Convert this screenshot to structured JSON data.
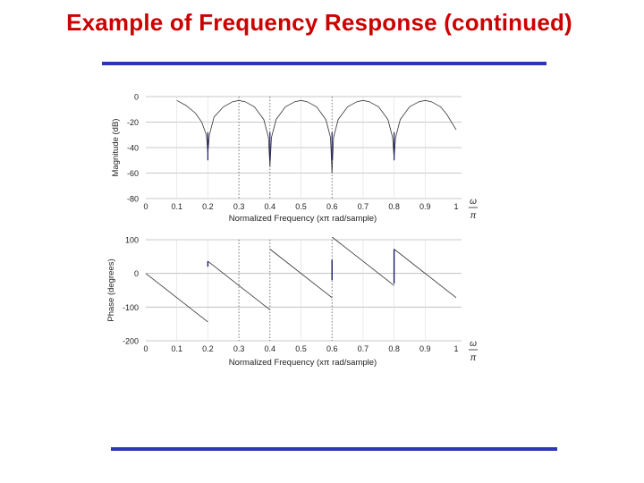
{
  "slide": {
    "title": "Example of Frequency Response (continued)",
    "title_color": "#cc0000",
    "rule_color": "#2b36b8"
  },
  "chart_data": [
    {
      "type": "line",
      "title": "",
      "xlabel": "Normalized Frequency  (xπ rad/sample)",
      "ylabel": "Magnitude (dB)",
      "xlim": [
        0,
        1
      ],
      "ylim": [
        -80,
        0
      ],
      "xticks": [
        "0",
        "0.1",
        "0.2",
        "0.3",
        "0.4",
        "0.5",
        "0.6",
        "0.7",
        "0.8",
        "0.9",
        "1"
      ],
      "yticks": [
        "0",
        "-20",
        "-40",
        "-60",
        "-80"
      ],
      "omega_label": "ω",
      "pi_label": "π",
      "grid": true,
      "line_color": "#333333",
      "zeros": [
        0.2,
        0.4,
        0.6,
        0.8
      ],
      "series": [
        {
          "segments": [
            [
              [
                0.1,
                -3
              ],
              [
                0.13,
                -7
              ],
              [
                0.16,
                -13
              ],
              [
                0.18,
                -20
              ],
              [
                0.195,
                -30
              ],
              [
                0.2,
                -44
              ]
            ],
            [
              [
                0.2,
                -44
              ],
              [
                0.205,
                -30
              ],
              [
                0.22,
                -16
              ],
              [
                0.25,
                -8
              ],
              [
                0.28,
                -4
              ],
              [
                0.3,
                -3
              ],
              [
                0.32,
                -4
              ],
              [
                0.35,
                -8
              ],
              [
                0.38,
                -18
              ],
              [
                0.395,
                -32
              ],
              [
                0.4,
                -55
              ]
            ],
            [
              [
                0.4,
                -55
              ],
              [
                0.405,
                -32
              ],
              [
                0.42,
                -18
              ],
              [
                0.45,
                -8
              ],
              [
                0.48,
                -4
              ],
              [
                0.5,
                -3
              ],
              [
                0.52,
                -4
              ],
              [
                0.55,
                -8
              ],
              [
                0.58,
                -18
              ],
              [
                0.595,
                -32
              ],
              [
                0.6,
                -60
              ]
            ],
            [
              [
                0.6,
                -60
              ],
              [
                0.605,
                -32
              ],
              [
                0.62,
                -18
              ],
              [
                0.65,
                -8
              ],
              [
                0.68,
                -4
              ],
              [
                0.7,
                -3
              ],
              [
                0.72,
                -4
              ],
              [
                0.75,
                -8
              ],
              [
                0.78,
                -18
              ],
              [
                0.795,
                -32
              ],
              [
                0.8,
                -48
              ]
            ],
            [
              [
                0.8,
                -48
              ],
              [
                0.805,
                -32
              ],
              [
                0.82,
                -18
              ],
              [
                0.85,
                -8
              ],
              [
                0.88,
                -4
              ],
              [
                0.9,
                -3
              ],
              [
                0.92,
                -4
              ],
              [
                0.95,
                -8
              ],
              [
                0.97,
                -14
              ],
              [
                0.99,
                -22
              ],
              [
                1.0,
                -26
              ]
            ]
          ]
        }
      ]
    },
    {
      "type": "line",
      "title": "",
      "xlabel": "Normalized Frequency  (xπ rad/sample)",
      "ylabel": "Phase (degrees)",
      "xlim": [
        0,
        1
      ],
      "ylim": [
        -200,
        100
      ],
      "xticks": [
        "0",
        "0.1",
        "0.2",
        "0.3",
        "0.4",
        "0.5",
        "0.6",
        "0.7",
        "0.8",
        "0.9",
        "1"
      ],
      "yticks": [
        "100",
        "0",
        "-100",
        "-200"
      ],
      "omega_label": "ω",
      "pi_label": "π",
      "grid": true,
      "line_color": "#333333",
      "series": [
        {
          "segments": [
            [
              [
                0.0,
                0
              ],
              [
                0.2,
                -144
              ]
            ],
            [
              [
                0.2,
                36
              ],
              [
                0.4,
                -108
              ]
            ],
            [
              [
                0.4,
                72
              ],
              [
                0.6,
                -72
              ]
            ],
            [
              [
                0.6,
                108
              ],
              [
                0.8,
                -36
              ]
            ],
            [
              [
                0.8,
                72
              ],
              [
                1.0,
                -72
              ]
            ]
          ],
          "spikes": [
            [
              [
                0.2,
                20
              ],
              [
                0.2,
                36
              ]
            ],
            [
              [
                0.6,
                -20
              ],
              [
                0.6,
                40
              ]
            ],
            [
              [
                0.8,
                -30
              ],
              [
                0.8,
                72
              ]
            ]
          ]
        }
      ]
    }
  ]
}
